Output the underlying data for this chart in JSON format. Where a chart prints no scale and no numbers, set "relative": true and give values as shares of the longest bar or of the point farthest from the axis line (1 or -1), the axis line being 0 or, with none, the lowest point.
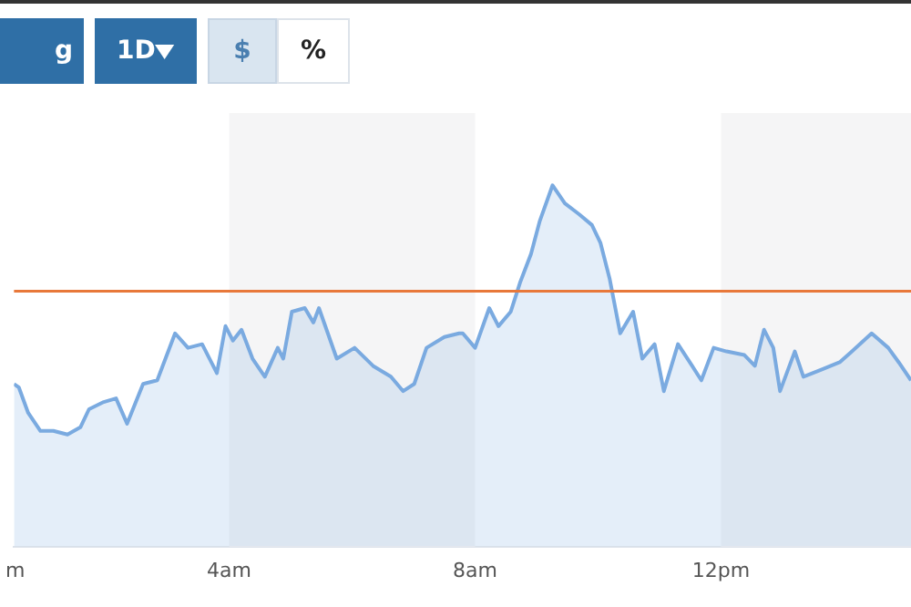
{
  "chart_data": {
    "type": "area",
    "relative": true,
    "x": [
      0.5,
      0.58,
      0.73,
      0.93,
      1.14,
      1.37,
      1.58,
      1.72,
      1.96,
      2.16,
      2.34,
      2.6,
      2.83,
      3.12,
      3.33,
      3.56,
      3.8,
      3.94,
      4.06,
      4.2,
      4.38,
      4.58,
      4.79,
      4.88,
      5.02,
      5.23,
      5.37,
      5.46,
      5.75,
      6.04,
      6.34,
      6.63,
      6.83,
      7.01,
      7.21,
      7.5,
      7.74,
      7.8,
      8.0,
      8.23,
      8.38,
      8.58,
      8.73,
      8.91,
      9.05,
      9.26,
      9.46,
      9.69,
      9.9,
      10.04,
      10.19,
      10.36,
      10.57,
      10.72,
      10.92,
      11.07,
      11.3,
      11.53,
      11.68,
      11.88,
      12.09,
      12.38,
      12.55,
      12.7,
      12.85,
      12.96,
      13.2,
      13.34,
      13.64,
      13.93,
      14.13,
      14.45,
      14.72,
      14.89,
      15.09
    ],
    "series": [
      {
        "color": "#7aaae0",
        "values": [
          0.45,
          0.44,
          0.37,
          0.32,
          0.32,
          0.31,
          0.33,
          0.38,
          0.4,
          0.41,
          0.34,
          0.45,
          0.46,
          0.59,
          0.55,
          0.56,
          0.48,
          0.61,
          0.57,
          0.6,
          0.52,
          0.47,
          0.55,
          0.52,
          0.65,
          0.66,
          0.62,
          0.66,
          0.52,
          0.55,
          0.5,
          0.47,
          0.43,
          0.45,
          0.55,
          0.58,
          0.59,
          0.59,
          0.55,
          0.66,
          0.61,
          0.65,
          0.73,
          0.81,
          0.9,
          1.0,
          0.95,
          0.92,
          0.89,
          0.84,
          0.74,
          0.59,
          0.65,
          0.52,
          0.56,
          0.43,
          0.56,
          0.5,
          0.46,
          0.55,
          0.54,
          0.53,
          0.5,
          0.6,
          0.55,
          0.43,
          0.54,
          0.47,
          0.49,
          0.51,
          0.54,
          0.59,
          0.55,
          0.51,
          0.46
        ]
      }
    ],
    "xlim": [
      0.5,
      15.09
    ],
    "xticks": [
      {
        "value": 0.52,
        "label": "m"
      },
      {
        "value": 4,
        "label": "4am"
      },
      {
        "value": 8,
        "label": "8am"
      },
      {
        "value": 12,
        "label": "12pm"
      }
    ],
    "ref_lines": [
      {
        "axis": "y",
        "value": 0.707,
        "color": "#e8783a"
      }
    ],
    "bands": [
      {
        "axis": "x",
        "from": 4,
        "to": 8,
        "color": "#f5f5f6"
      },
      {
        "axis": "x",
        "from": 12,
        "to": 15.09,
        "color": "#f5f5f6"
      }
    ],
    "annotations": [
      "g",
      "1D",
      "$",
      "%"
    ],
    "legend": false
  }
}
